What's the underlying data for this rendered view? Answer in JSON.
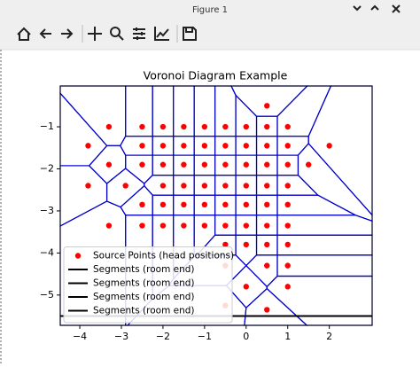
{
  "window": {
    "title": "Figure 1"
  },
  "chart_data": {
    "type": "voronoi",
    "title": "Voronoi Diagram Example",
    "xlim": [
      -4.47,
      3.03
    ],
    "ylim": [
      -5.72,
      -0.03
    ],
    "xticks": [
      {
        "value": -4,
        "label": "−4"
      },
      {
        "value": -3,
        "label": "−3"
      },
      {
        "value": -2,
        "label": "−2"
      },
      {
        "value": -1,
        "label": "−1"
      },
      0,
      1,
      2
    ],
    "yticks": [
      {
        "value": -1,
        "label": "−1"
      },
      {
        "value": -2,
        "label": "−2"
      },
      {
        "value": -3,
        "label": "−3"
      },
      {
        "value": -4,
        "label": "−4"
      },
      {
        "value": -5,
        "label": "−5"
      }
    ],
    "edge_color": "#0000cc",
    "legend": "lower left",
    "series": [
      {
        "name": "Source Points (head positions)",
        "kind": "points",
        "color": "#ff0000",
        "x": [
          0.5,
          -3.3,
          -2.5,
          -2,
          -1.5,
          -1,
          -0.5,
          0,
          0.5,
          1,
          -3.8,
          -2.5,
          -2,
          -1.5,
          -1,
          -0.5,
          0,
          0.5,
          1,
          2,
          -3.3,
          -2.5,
          -2,
          -1.5,
          -1,
          -0.5,
          0,
          0.5,
          1,
          1.5,
          -3.8,
          -2.9,
          -2,
          -1.5,
          -1,
          -0.5,
          0,
          0.5,
          1,
          -2.5,
          -2,
          -1.5,
          -1,
          -0.5,
          0,
          0.5,
          1,
          -3.3,
          -2.5,
          -2,
          -1.5,
          -1,
          -0.5,
          0,
          0.5,
          1,
          -0.5,
          0,
          0.5,
          1,
          -0.5,
          0.5,
          1,
          0,
          1,
          -0.5,
          0.5
        ],
        "y": [
          -0.5,
          -1,
          -1,
          -1,
          -1,
          -1,
          -1,
          -1,
          -1,
          -1,
          -1.45,
          -1.45,
          -1.45,
          -1.45,
          -1.45,
          -1.45,
          -1.45,
          -1.45,
          -1.45,
          -1.45,
          -1.9,
          -1.9,
          -1.9,
          -1.9,
          -1.9,
          -1.9,
          -1.9,
          -1.9,
          -1.9,
          -1.9,
          -2.4,
          -2.4,
          -2.4,
          -2.4,
          -2.4,
          -2.4,
          -2.4,
          -2.4,
          -2.4,
          -2.85,
          -2.85,
          -2.85,
          -2.85,
          -2.85,
          -2.85,
          -2.85,
          -2.85,
          -3.35,
          -3.35,
          -3.35,
          -3.35,
          -3.35,
          -3.35,
          -3.35,
          -3.35,
          -3.35,
          -3.8,
          -3.8,
          -3.8,
          -3.8,
          -4.3,
          -4.3,
          -4.3,
          -4.8,
          -4.8,
          -5.25,
          -5.35
        ]
      },
      {
        "name": "Segments (room end)",
        "kind": "line",
        "color": "#000000",
        "x": [
          -4.47,
          3.03
        ],
        "y": [
          -5.5,
          -5.5
        ]
      },
      {
        "name": "Segments (room end)",
        "kind": "line",
        "color": "#000000",
        "x": [
          -4.47,
          3.03
        ],
        "y": [
          -5.5,
          -5.5
        ]
      },
      {
        "name": "Segments (room end)",
        "kind": "line",
        "color": "#000000",
        "x": [
          -4.47,
          3.03
        ],
        "y": [
          -5.5,
          -5.5
        ]
      },
      {
        "name": "Segments (room end)",
        "kind": "line",
        "color": "#000000",
        "x": [
          -4.47,
          3.03
        ],
        "y": [
          -5.5,
          -5.5
        ]
      }
    ]
  }
}
